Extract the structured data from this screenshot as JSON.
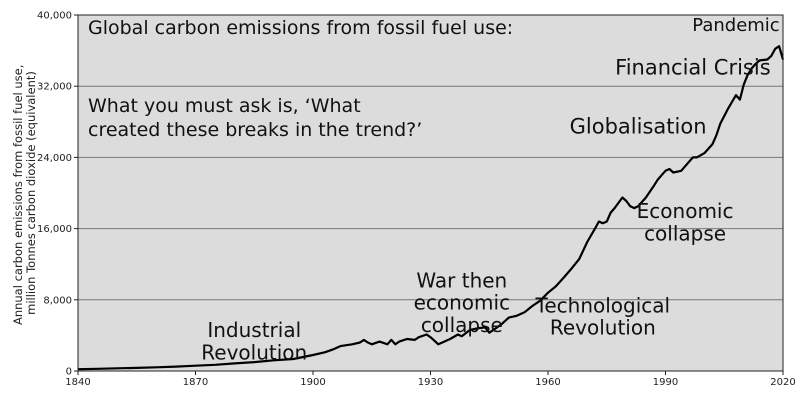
{
  "chart_data": {
    "type": "line",
    "title": "Global carbon emissions from fossil fuel use:",
    "subtitle": [
      "What you must ask is, ‘What",
      "created these breaks in the trend?’"
    ],
    "ylabel": [
      "Annual carbon emissions from fossil fuel use,",
      "million Tonnes carbon dioxide (equivalent)"
    ],
    "xlabel": "",
    "xlim": [
      1840,
      2020
    ],
    "ylim": [
      0,
      40000
    ],
    "x_ticks": [
      1840,
      1870,
      1900,
      1930,
      1960,
      1990,
      2020
    ],
    "y_ticks": [
      0,
      8000,
      16000,
      24000,
      32000,
      40000
    ],
    "y_tick_labels": [
      "0",
      "8,000",
      "16,000",
      "24,000",
      "32,000",
      "40,000"
    ],
    "grid": "horizontal",
    "background": "#dcdcdc",
    "line_color": "#000000",
    "annotations": [
      {
        "id": "industrial",
        "lines": [
          "Industrial",
          "Revolution"
        ],
        "x": 1885,
        "y": 3800
      },
      {
        "id": "war",
        "lines": [
          "War then",
          "economic",
          "collapse"
        ],
        "x": 1938,
        "y": 9400
      },
      {
        "id": "technological",
        "lines": [
          "Technological",
          "Revolution"
        ],
        "x": 1974,
        "y": 6600
      },
      {
        "id": "economic",
        "lines": [
          "Economic",
          "collapse"
        ],
        "x": 1995,
        "y": 17200
      },
      {
        "id": "globalisation",
        "lines": [
          "Globalisation"
        ],
        "x": 1983,
        "y": 26700
      },
      {
        "id": "financial",
        "lines": [
          "Financial Crisis"
        ],
        "x": 1997,
        "y": 33300
      },
      {
        "id": "pandemic",
        "lines": [
          "Pandemic"
        ],
        "x": 2008,
        "y": 38200
      }
    ],
    "series": [
      {
        "values": [
          [
            1840,
            200
          ],
          [
            1845,
            250
          ],
          [
            1850,
            300
          ],
          [
            1855,
            350
          ],
          [
            1860,
            420
          ],
          [
            1865,
            500
          ],
          [
            1870,
            600
          ],
          [
            1875,
            700
          ],
          [
            1880,
            850
          ],
          [
            1885,
            1000
          ],
          [
            1890,
            1200
          ],
          [
            1895,
            1350
          ],
          [
            1900,
            1800
          ],
          [
            1903,
            2100
          ],
          [
            1905,
            2400
          ],
          [
            1907,
            2800
          ],
          [
            1910,
            3000
          ],
          [
            1912,
            3200
          ],
          [
            1913,
            3500
          ],
          [
            1914,
            3200
          ],
          [
            1915,
            3000
          ],
          [
            1917,
            3300
          ],
          [
            1919,
            3000
          ],
          [
            1920,
            3500
          ],
          [
            1921,
            3000
          ],
          [
            1922,
            3300
          ],
          [
            1924,
            3600
          ],
          [
            1926,
            3500
          ],
          [
            1927,
            3800
          ],
          [
            1929,
            4100
          ],
          [
            1930,
            3800
          ],
          [
            1931,
            3400
          ],
          [
            1932,
            3000
          ],
          [
            1933,
            3200
          ],
          [
            1935,
            3600
          ],
          [
            1937,
            4100
          ],
          [
            1938,
            3900
          ],
          [
            1940,
            4600
          ],
          [
            1942,
            4800
          ],
          [
            1944,
            4900
          ],
          [
            1945,
            4300
          ],
          [
            1946,
            4600
          ],
          [
            1948,
            5200
          ],
          [
            1950,
            6000
          ],
          [
            1952,
            6200
          ],
          [
            1954,
            6600
          ],
          [
            1956,
            7300
          ],
          [
            1958,
            7900
          ],
          [
            1960,
            8800
          ],
          [
            1962,
            9500
          ],
          [
            1964,
            10500
          ],
          [
            1966,
            11500
          ],
          [
            1968,
            12600
          ],
          [
            1970,
            14500
          ],
          [
            1972,
            16000
          ],
          [
            1973,
            16800
          ],
          [
            1974,
            16600
          ],
          [
            1975,
            16800
          ],
          [
            1976,
            17800
          ],
          [
            1977,
            18300
          ],
          [
            1979,
            19500
          ],
          [
            1980,
            19100
          ],
          [
            1981,
            18500
          ],
          [
            1982,
            18300
          ],
          [
            1983,
            18500
          ],
          [
            1985,
            19500
          ],
          [
            1987,
            20800
          ],
          [
            1988,
            21500
          ],
          [
            1989,
            22000
          ],
          [
            1990,
            22500
          ],
          [
            1991,
            22700
          ],
          [
            1992,
            22300
          ],
          [
            1994,
            22500
          ],
          [
            1996,
            23500
          ],
          [
            1997,
            24000
          ],
          [
            1998,
            24000
          ],
          [
            2000,
            24500
          ],
          [
            2002,
            25500
          ],
          [
            2003,
            26500
          ],
          [
            2004,
            27800
          ],
          [
            2006,
            29500
          ],
          [
            2008,
            31000
          ],
          [
            2009,
            30500
          ],
          [
            2010,
            32200
          ],
          [
            2011,
            33300
          ],
          [
            2012,
            34000
          ],
          [
            2013,
            34500
          ],
          [
            2014,
            34900
          ],
          [
            2016,
            35000
          ],
          [
            2017,
            35400
          ],
          [
            2018,
            36200
          ],
          [
            2019,
            36500
          ],
          [
            2020,
            35000
          ]
        ]
      }
    ]
  }
}
